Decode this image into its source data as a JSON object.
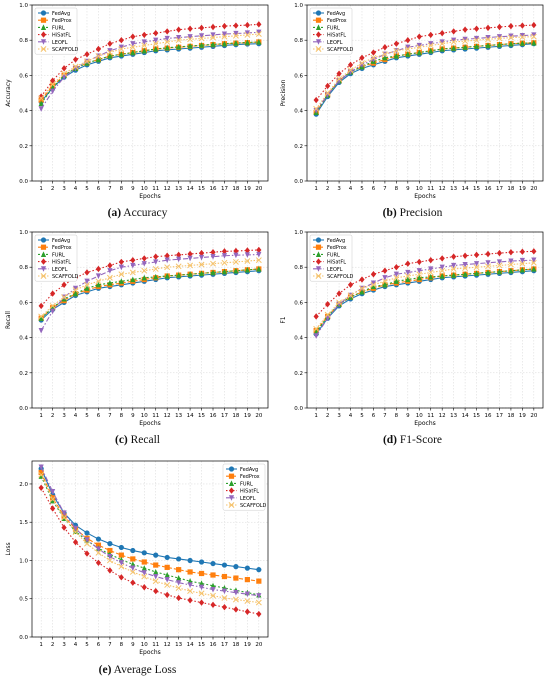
{
  "colors": {
    "FedAvg": "#1f77b4",
    "FedProx": "#ff7f0e",
    "FURL": "#2ca02c",
    "HiSatFL": "#d62728",
    "LEOFL": "#9467bd",
    "SCAFFOLD": "#f5c26b"
  },
  "markers": {
    "FedAvg": "circle",
    "FedProx": "square",
    "FURL": "triangle-up",
    "HiSatFL": "diamond",
    "LEOFL": "triangle-down",
    "SCAFFOLD": "x"
  },
  "panels": [
    {
      "id": "a",
      "letter": "(a)",
      "caption": "Accuracy"
    },
    {
      "id": "b",
      "letter": "(b)",
      "caption": "Precision"
    },
    {
      "id": "c",
      "letter": "(c)",
      "caption": "Recall"
    },
    {
      "id": "d",
      "letter": "(d)",
      "caption": "F1-Score"
    },
    {
      "id": "e",
      "letter": "(e)",
      "caption": "Average Loss"
    }
  ],
  "chart_data": [
    {
      "type": "line",
      "xlabel": "Epochs",
      "ylabel": "Accuracy",
      "ylim": [
        0.0,
        1.0
      ],
      "yticks": [
        "0.0",
        "0.2",
        "0.4",
        "0.6",
        "0.8",
        "1.0"
      ],
      "x": [
        1,
        2,
        3,
        4,
        5,
        6,
        7,
        8,
        9,
        10,
        11,
        12,
        13,
        14,
        15,
        16,
        17,
        18,
        19,
        20
      ],
      "grid": "on",
      "legend": "top-left",
      "series": [
        {
          "name": "FedAvg",
          "values": [
            0.45,
            0.53,
            0.59,
            0.63,
            0.66,
            0.68,
            0.7,
            0.71,
            0.72,
            0.73,
            0.74,
            0.745,
            0.75,
            0.755,
            0.76,
            0.765,
            0.77,
            0.775,
            0.778,
            0.78
          ]
        },
        {
          "name": "FedProx",
          "values": [
            0.46,
            0.54,
            0.6,
            0.64,
            0.67,
            0.69,
            0.71,
            0.72,
            0.73,
            0.74,
            0.75,
            0.755,
            0.76,
            0.765,
            0.77,
            0.775,
            0.78,
            0.783,
            0.786,
            0.79
          ]
        },
        {
          "name": "FURL",
          "values": [
            0.44,
            0.53,
            0.6,
            0.64,
            0.67,
            0.69,
            0.71,
            0.72,
            0.73,
            0.74,
            0.75,
            0.757,
            0.762,
            0.767,
            0.772,
            0.776,
            0.78,
            0.784,
            0.787,
            0.79
          ]
        },
        {
          "name": "HiSatFL",
          "values": [
            0.48,
            0.57,
            0.64,
            0.69,
            0.72,
            0.75,
            0.78,
            0.8,
            0.82,
            0.83,
            0.84,
            0.85,
            0.86,
            0.865,
            0.87,
            0.875,
            0.88,
            0.883,
            0.886,
            0.89
          ]
        },
        {
          "name": "LEOFL",
          "values": [
            0.41,
            0.51,
            0.59,
            0.64,
            0.68,
            0.71,
            0.74,
            0.76,
            0.78,
            0.79,
            0.8,
            0.81,
            0.815,
            0.82,
            0.825,
            0.83,
            0.835,
            0.838,
            0.841,
            0.845
          ]
        },
        {
          "name": "SCAFFOLD",
          "values": [
            0.47,
            0.55,
            0.61,
            0.65,
            0.68,
            0.71,
            0.73,
            0.75,
            0.76,
            0.77,
            0.78,
            0.79,
            0.8,
            0.805,
            0.81,
            0.815,
            0.82,
            0.825,
            0.83,
            0.835
          ]
        }
      ]
    },
    {
      "type": "line",
      "xlabel": "Epochs",
      "ylabel": "Precision",
      "ylim": [
        0.0,
        1.0
      ],
      "yticks": [
        "0.0",
        "0.2",
        "0.4",
        "0.6",
        "0.8",
        "1.0"
      ],
      "x": [
        1,
        2,
        3,
        4,
        5,
        6,
        7,
        8,
        9,
        10,
        11,
        12,
        13,
        14,
        15,
        16,
        17,
        18,
        19,
        20
      ],
      "grid": "on",
      "legend": "top-left",
      "series": [
        {
          "name": "FedAvg",
          "values": [
            0.38,
            0.48,
            0.56,
            0.61,
            0.64,
            0.66,
            0.68,
            0.7,
            0.71,
            0.72,
            0.73,
            0.74,
            0.745,
            0.75,
            0.755,
            0.76,
            0.765,
            0.77,
            0.775,
            0.78
          ]
        },
        {
          "name": "FedProx",
          "values": [
            0.39,
            0.49,
            0.57,
            0.62,
            0.65,
            0.67,
            0.69,
            0.71,
            0.72,
            0.73,
            0.74,
            0.75,
            0.755,
            0.76,
            0.765,
            0.77,
            0.775,
            0.78,
            0.783,
            0.785
          ]
        },
        {
          "name": "FURL",
          "values": [
            0.39,
            0.49,
            0.57,
            0.62,
            0.65,
            0.68,
            0.7,
            0.71,
            0.72,
            0.73,
            0.74,
            0.75,
            0.755,
            0.76,
            0.765,
            0.77,
            0.775,
            0.78,
            0.783,
            0.785
          ]
        },
        {
          "name": "HiSatFL",
          "values": [
            0.46,
            0.54,
            0.61,
            0.66,
            0.7,
            0.73,
            0.76,
            0.78,
            0.8,
            0.82,
            0.83,
            0.84,
            0.85,
            0.86,
            0.865,
            0.87,
            0.875,
            0.88,
            0.883,
            0.886
          ]
        },
        {
          "name": "LEOFL",
          "values": [
            0.4,
            0.49,
            0.57,
            0.62,
            0.66,
            0.69,
            0.72,
            0.74,
            0.76,
            0.77,
            0.78,
            0.79,
            0.8,
            0.805,
            0.81,
            0.815,
            0.82,
            0.823,
            0.826,
            0.83
          ]
        },
        {
          "name": "SCAFFOLD",
          "values": [
            0.41,
            0.5,
            0.58,
            0.63,
            0.67,
            0.7,
            0.72,
            0.74,
            0.75,
            0.76,
            0.77,
            0.78,
            0.79,
            0.795,
            0.8,
            0.805,
            0.81,
            0.815,
            0.818,
            0.82
          ]
        }
      ]
    },
    {
      "type": "line",
      "xlabel": "Epochs",
      "ylabel": "Recall",
      "ylim": [
        0.0,
        1.0
      ],
      "yticks": [
        "0.0",
        "0.2",
        "0.4",
        "0.6",
        "0.8",
        "1.0"
      ],
      "x": [
        1,
        2,
        3,
        4,
        5,
        6,
        7,
        8,
        9,
        10,
        11,
        12,
        13,
        14,
        15,
        16,
        17,
        18,
        19,
        20
      ],
      "grid": "on",
      "legend": "top-left",
      "series": [
        {
          "name": "FedAvg",
          "values": [
            0.5,
            0.56,
            0.6,
            0.64,
            0.66,
            0.68,
            0.69,
            0.7,
            0.71,
            0.72,
            0.73,
            0.74,
            0.745,
            0.75,
            0.755,
            0.76,
            0.765,
            0.77,
            0.775,
            0.78
          ]
        },
        {
          "name": "FedProx",
          "values": [
            0.51,
            0.57,
            0.61,
            0.65,
            0.67,
            0.69,
            0.7,
            0.71,
            0.72,
            0.73,
            0.74,
            0.75,
            0.755,
            0.76,
            0.765,
            0.77,
            0.775,
            0.78,
            0.785,
            0.79
          ]
        },
        {
          "name": "FURL",
          "values": [
            0.51,
            0.57,
            0.62,
            0.65,
            0.68,
            0.7,
            0.71,
            0.72,
            0.73,
            0.74,
            0.745,
            0.75,
            0.755,
            0.76,
            0.765,
            0.77,
            0.775,
            0.78,
            0.785,
            0.79
          ]
        },
        {
          "name": "HiSatFL",
          "values": [
            0.58,
            0.65,
            0.7,
            0.74,
            0.77,
            0.79,
            0.81,
            0.83,
            0.84,
            0.85,
            0.86,
            0.865,
            0.87,
            0.875,
            0.88,
            0.885,
            0.89,
            0.892,
            0.895,
            0.898
          ]
        },
        {
          "name": "LEOFL",
          "values": [
            0.44,
            0.55,
            0.63,
            0.68,
            0.72,
            0.75,
            0.78,
            0.8,
            0.81,
            0.82,
            0.83,
            0.84,
            0.845,
            0.85,
            0.855,
            0.86,
            0.865,
            0.868,
            0.87,
            0.872
          ]
        },
        {
          "name": "SCAFFOLD",
          "values": [
            0.52,
            0.58,
            0.63,
            0.67,
            0.7,
            0.72,
            0.74,
            0.76,
            0.77,
            0.78,
            0.79,
            0.8,
            0.805,
            0.81,
            0.815,
            0.82,
            0.825,
            0.83,
            0.835,
            0.84
          ]
        }
      ]
    },
    {
      "type": "line",
      "xlabel": "Epochs",
      "ylabel": "F1",
      "ylim": [
        0.0,
        1.0
      ],
      "yticks": [
        "0.0",
        "0.2",
        "0.4",
        "0.6",
        "0.8",
        "1.0"
      ],
      "x": [
        1,
        2,
        3,
        4,
        5,
        6,
        7,
        8,
        9,
        10,
        11,
        12,
        13,
        14,
        15,
        16,
        17,
        18,
        19,
        20
      ],
      "grid": "on",
      "legend": "top-left",
      "series": [
        {
          "name": "FedAvg",
          "values": [
            0.42,
            0.51,
            0.58,
            0.62,
            0.65,
            0.67,
            0.69,
            0.7,
            0.71,
            0.72,
            0.73,
            0.74,
            0.745,
            0.75,
            0.755,
            0.76,
            0.765,
            0.77,
            0.775,
            0.78
          ]
        },
        {
          "name": "FedProx",
          "values": [
            0.44,
            0.52,
            0.59,
            0.63,
            0.66,
            0.68,
            0.7,
            0.71,
            0.72,
            0.73,
            0.74,
            0.75,
            0.755,
            0.76,
            0.765,
            0.77,
            0.775,
            0.78,
            0.785,
            0.79
          ]
        },
        {
          "name": "FURL",
          "values": [
            0.43,
            0.52,
            0.59,
            0.63,
            0.66,
            0.69,
            0.7,
            0.72,
            0.73,
            0.74,
            0.745,
            0.75,
            0.755,
            0.76,
            0.765,
            0.77,
            0.775,
            0.78,
            0.785,
            0.79
          ]
        },
        {
          "name": "HiSatFL",
          "values": [
            0.52,
            0.59,
            0.65,
            0.7,
            0.73,
            0.76,
            0.78,
            0.8,
            0.82,
            0.83,
            0.84,
            0.85,
            0.86,
            0.865,
            0.87,
            0.875,
            0.88,
            0.885,
            0.888,
            0.89
          ]
        },
        {
          "name": "LEOFL",
          "values": [
            0.41,
            0.51,
            0.59,
            0.64,
            0.68,
            0.71,
            0.74,
            0.76,
            0.77,
            0.78,
            0.79,
            0.8,
            0.81,
            0.815,
            0.82,
            0.825,
            0.83,
            0.835,
            0.838,
            0.84
          ]
        },
        {
          "name": "SCAFFOLD",
          "values": [
            0.45,
            0.53,
            0.6,
            0.64,
            0.68,
            0.7,
            0.72,
            0.74,
            0.75,
            0.76,
            0.77,
            0.78,
            0.79,
            0.795,
            0.8,
            0.805,
            0.81,
            0.815,
            0.82,
            0.825
          ]
        }
      ]
    },
    {
      "type": "line",
      "xlabel": "Epochs",
      "ylabel": "Loss",
      "ylim": [
        0.0,
        2.3
      ],
      "yticks": [
        "0.0",
        "0.5",
        "1.0",
        "1.5",
        "2.0"
      ],
      "ytickvals": [
        0.0,
        0.5,
        1.0,
        1.5,
        2.0
      ],
      "x": [
        1,
        2,
        3,
        4,
        5,
        6,
        7,
        8,
        9,
        10,
        11,
        12,
        13,
        14,
        15,
        16,
        17,
        18,
        19,
        20
      ],
      "grid": "on",
      "legend": "top-right",
      "series": [
        {
          "name": "FedAvg",
          "values": [
            2.2,
            1.86,
            1.62,
            1.46,
            1.36,
            1.28,
            1.22,
            1.17,
            1.13,
            1.1,
            1.07,
            1.04,
            1.02,
            1.0,
            0.98,
            0.96,
            0.94,
            0.92,
            0.9,
            0.88
          ]
        },
        {
          "name": "FedProx",
          "values": [
            2.15,
            1.82,
            1.58,
            1.41,
            1.29,
            1.2,
            1.13,
            1.07,
            1.02,
            0.98,
            0.94,
            0.91,
            0.88,
            0.85,
            0.83,
            0.81,
            0.79,
            0.77,
            0.75,
            0.73
          ]
        },
        {
          "name": "FURL",
          "values": [
            2.1,
            1.78,
            1.55,
            1.38,
            1.26,
            1.16,
            1.08,
            1.01,
            0.95,
            0.9,
            0.85,
            0.81,
            0.77,
            0.73,
            0.7,
            0.67,
            0.64,
            0.61,
            0.58,
            0.55
          ]
        },
        {
          "name": "HiSatFL",
          "values": [
            1.95,
            1.68,
            1.43,
            1.24,
            1.09,
            0.97,
            0.87,
            0.78,
            0.71,
            0.65,
            0.6,
            0.55,
            0.51,
            0.48,
            0.45,
            0.42,
            0.39,
            0.36,
            0.33,
            0.3
          ]
        },
        {
          "name": "LEOFL",
          "values": [
            2.22,
            1.9,
            1.62,
            1.42,
            1.27,
            1.15,
            1.05,
            0.97,
            0.9,
            0.84,
            0.79,
            0.75,
            0.71,
            0.68,
            0.65,
            0.62,
            0.6,
            0.58,
            0.56,
            0.54
          ]
        },
        {
          "name": "SCAFFOLD",
          "values": [
            2.12,
            1.8,
            1.56,
            1.37,
            1.22,
            1.1,
            1.0,
            0.92,
            0.85,
            0.79,
            0.73,
            0.68,
            0.64,
            0.6,
            0.57,
            0.54,
            0.51,
            0.49,
            0.47,
            0.45
          ]
        }
      ]
    }
  ]
}
